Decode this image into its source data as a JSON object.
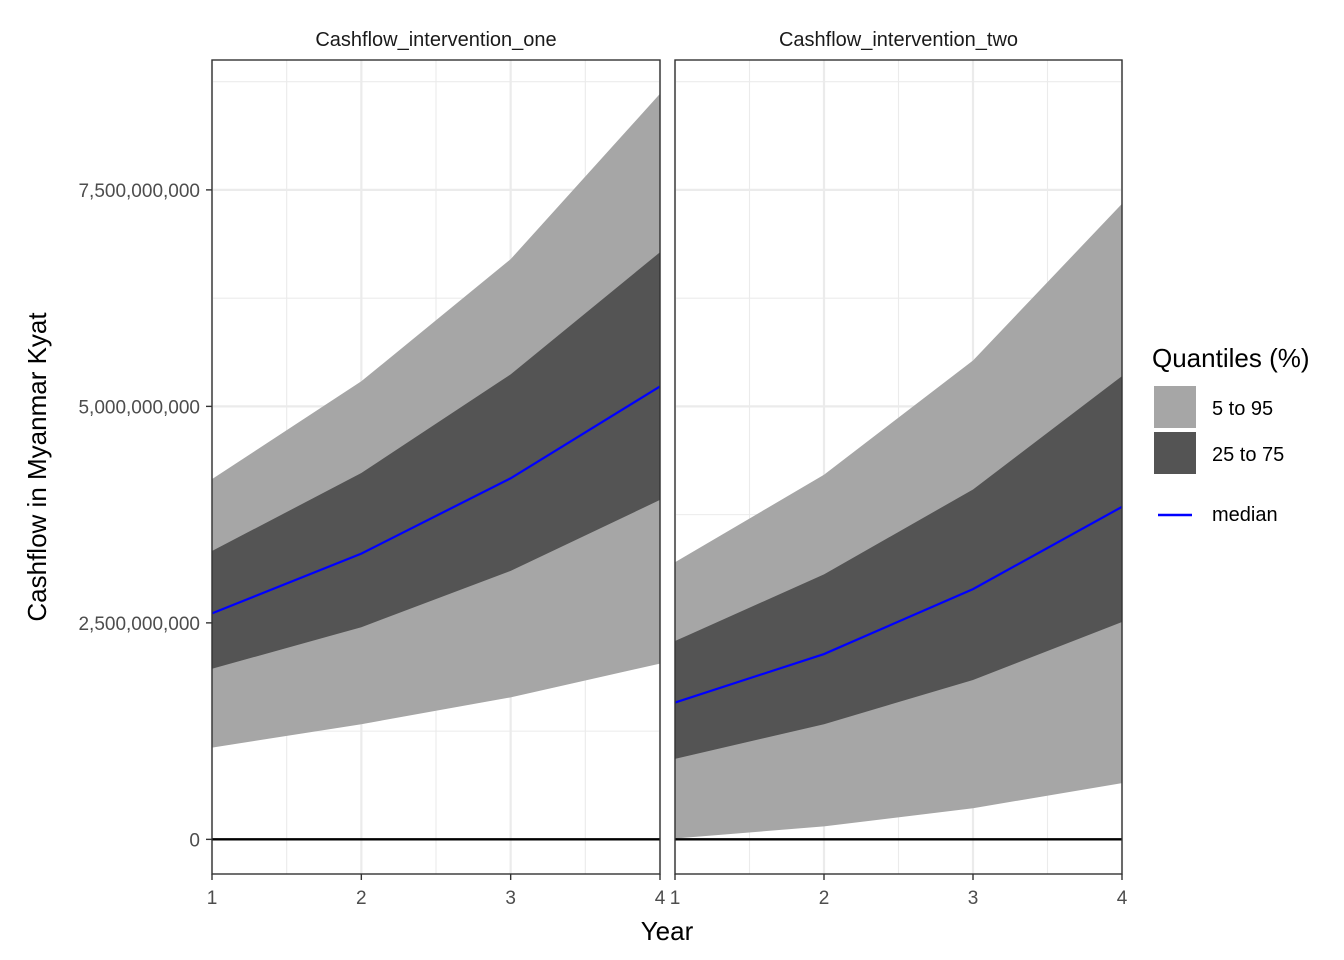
{
  "chart_data": {
    "type": "area",
    "xlabel": "Year",
    "ylabel": "Cashflow in Myanmar Kyat",
    "x": [
      1,
      2,
      3,
      4
    ],
    "xlim": [
      1,
      4
    ],
    "ylim": [
      -400000000,
      9000000000
    ],
    "x_ticks": [
      1,
      2,
      3,
      4
    ],
    "y_ticks": [
      0,
      2500000000,
      5000000000,
      7500000000
    ],
    "y_tick_labels": [
      "0",
      "2,500,000,000",
      "5,000,000,000",
      "7,500,000,000"
    ],
    "grid": true,
    "reference_line_y": 0,
    "legend": {
      "title": "Quantiles (%)",
      "placement": "right",
      "items": [
        {
          "label": "5 to 95",
          "color": "#a6a6a6",
          "kind": "band"
        },
        {
          "label": "25 to 75",
          "color": "#545454",
          "kind": "band"
        },
        {
          "label": "median",
          "color": "#0000ff",
          "kind": "line"
        }
      ]
    },
    "panels": [
      {
        "title": "Cashflow_intervention_one",
        "q05": [
          1060000000,
          1330000000,
          1640000000,
          2030000000
        ],
        "q25": [
          1970000000,
          2450000000,
          3100000000,
          3920000000
        ],
        "median": [
          2610000000,
          3300000000,
          4170000000,
          5230000000
        ],
        "q75": [
          3330000000,
          4230000000,
          5370000000,
          6780000000
        ],
        "q95": [
          4160000000,
          5290000000,
          6700000000,
          8610000000
        ]
      },
      {
        "title": "Cashflow_intervention_two",
        "q05": [
          10000000,
          150000000,
          360000000,
          650000000
        ],
        "q25": [
          930000000,
          1330000000,
          1840000000,
          2510000000
        ],
        "median": [
          1580000000,
          2140000000,
          2890000000,
          3840000000
        ],
        "q75": [
          2290000000,
          3060000000,
          4040000000,
          5350000000
        ],
        "q95": [
          3200000000,
          4210000000,
          5530000000,
          7340000000
        ]
      }
    ]
  },
  "colors": {
    "band_outer": "#a6a6a6",
    "band_inner": "#545454",
    "median": "#0000ff",
    "zero_line": "#000000",
    "grid": "#ebebeb",
    "panel_border": "#333333"
  }
}
